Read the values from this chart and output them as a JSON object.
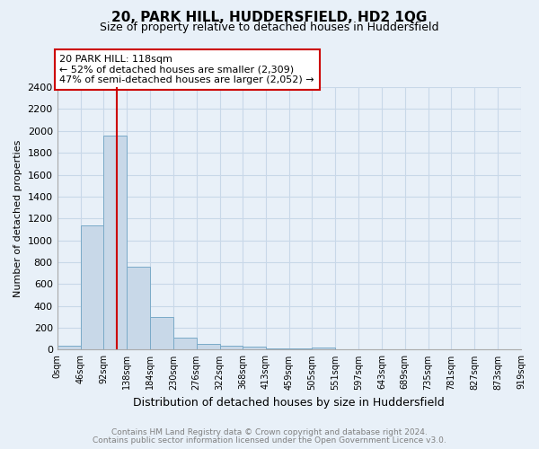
{
  "title": "20, PARK HILL, HUDDERSFIELD, HD2 1QG",
  "subtitle": "Size of property relative to detached houses in Huddersfield",
  "xlabel": "Distribution of detached houses by size in Huddersfield",
  "ylabel": "Number of detached properties",
  "footer_line1": "Contains HM Land Registry data © Crown copyright and database right 2024.",
  "footer_line2": "Contains public sector information licensed under the Open Government Licence v3.0.",
  "annotation_title": "20 PARK HILL: 118sqm",
  "annotation_line2": "← 52% of detached houses are smaller (2,309)",
  "annotation_line3": "47% of semi-detached houses are larger (2,052) →",
  "property_size_sqm": 118,
  "bar_edges": [
    0,
    46,
    92,
    138,
    184,
    230,
    276,
    322,
    368,
    413,
    459,
    505,
    551,
    597,
    643,
    689,
    735,
    781,
    827,
    873,
    919
  ],
  "bar_heights": [
    35,
    1140,
    1960,
    760,
    300,
    110,
    50,
    35,
    25,
    15,
    15,
    20,
    0,
    0,
    0,
    0,
    0,
    0,
    0,
    0
  ],
  "bar_color": "#c8d8e8",
  "bar_edge_color": "#7aaac8",
  "vline_color": "#cc0000",
  "vline_x": 118,
  "annotation_box_color": "#cc0000",
  "annotation_bg": "#ffffff",
  "grid_color": "#c8d8e8",
  "background_color": "#e8f0f8",
  "ylim": [
    0,
    2400
  ],
  "yticks": [
    0,
    200,
    400,
    600,
    800,
    1000,
    1200,
    1400,
    1600,
    1800,
    2000,
    2200,
    2400
  ],
  "tick_labels": [
    "0sqm",
    "46sqm",
    "92sqm",
    "138sqm",
    "184sqm",
    "230sqm",
    "276sqm",
    "322sqm",
    "368sqm",
    "413sqm",
    "459sqm",
    "505sqm",
    "551sqm",
    "597sqm",
    "643sqm",
    "689sqm",
    "735sqm",
    "781sqm",
    "827sqm",
    "873sqm",
    "919sqm"
  ],
  "title_fontsize": 11,
  "subtitle_fontsize": 9,
  "xlabel_fontsize": 9,
  "ylabel_fontsize": 8,
  "tick_fontsize": 7,
  "footer_fontsize": 6.5
}
